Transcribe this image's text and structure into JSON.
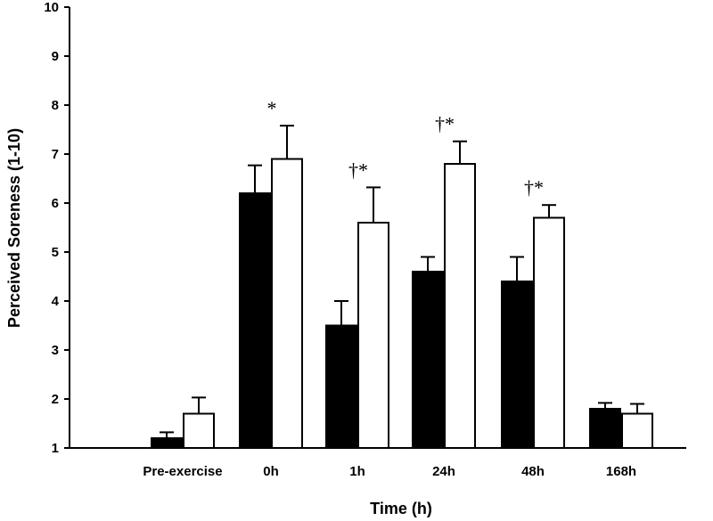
{
  "chart_data": {
    "type": "bar",
    "xlabel": "Time (h)",
    "ylabel": "Perceived Soreness (1-10)",
    "ylim": [
      1,
      10
    ],
    "yticks": [
      1,
      2,
      3,
      4,
      5,
      6,
      7,
      8,
      9,
      10
    ],
    "categories": [
      "Pre-exercise",
      "0h",
      "1h",
      "24h",
      "48h",
      "168h"
    ],
    "series": [
      {
        "fill": "#000000",
        "values": [
          1.2,
          6.2,
          3.5,
          4.6,
          4.4,
          1.8
        ],
        "errors": [
          0.12,
          0.57,
          0.5,
          0.3,
          0.5,
          0.12
        ]
      },
      {
        "fill": "#ffffff",
        "values": [
          1.7,
          6.9,
          5.6,
          6.8,
          5.7,
          1.7
        ],
        "errors": [
          0.33,
          0.68,
          0.72,
          0.46,
          0.26,
          0.2
        ]
      }
    ],
    "annotations": [
      "",
      "*",
      "†*",
      "†*",
      "†*",
      ""
    ],
    "grid": false,
    "legend": "none"
  }
}
